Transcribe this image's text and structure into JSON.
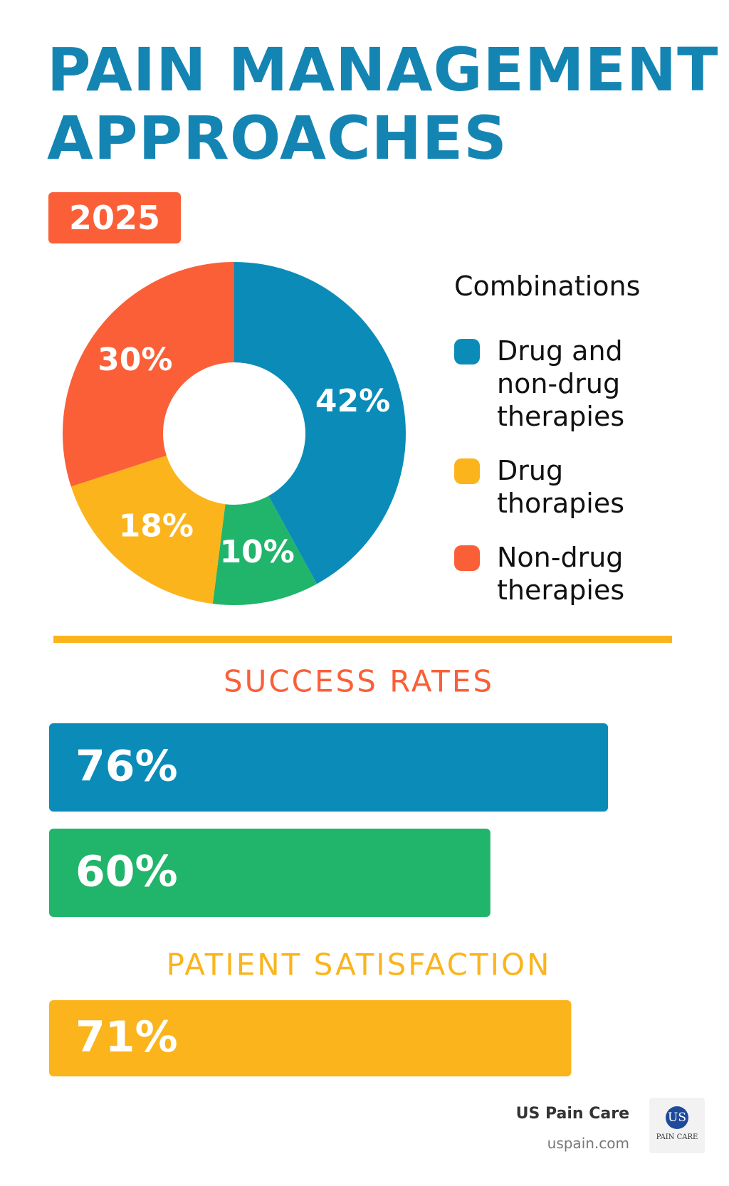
{
  "header": {
    "title_lines": [
      "PAIN MANAGEMENT",
      "APPROACHES"
    ],
    "badge": "2025"
  },
  "chart_data": [
    {
      "type": "donut",
      "legend_title": "Combinations",
      "categories": [
        "Drug and non-drug therapies",
        null,
        "Drug thorapies",
        "Non-drug therapies"
      ],
      "values": [
        42,
        10,
        18,
        30
      ],
      "value_labels": [
        "42%",
        "10%",
        "18%",
        "30%"
      ],
      "colors": [
        "#0b8bb8",
        "#21b46b",
        "#fbb41c",
        "#fb5f37"
      ]
    },
    {
      "type": "bar",
      "orientation": "horizontal",
      "title": "SUCCESS RATES",
      "title_color": "#fb5f37",
      "values": [
        76,
        60
      ],
      "value_labels": [
        "76%",
        "60%"
      ],
      "colors": [
        "#0b8bb8",
        "#21b46b"
      ],
      "xlim": [
        0,
        100
      ]
    },
    {
      "type": "bar",
      "orientation": "horizontal",
      "title": "PATIENT SATISFACTION",
      "title_color": "#fbb41c",
      "values": [
        71
      ],
      "value_labels": [
        "71%"
      ],
      "colors": [
        "#fbb41c"
      ],
      "xlim": [
        0,
        100
      ]
    }
  ],
  "footer": {
    "brand": "US Pain Care",
    "url": "uspain.com",
    "logo_mark": "US",
    "logo_text": "PAIN CARE"
  }
}
